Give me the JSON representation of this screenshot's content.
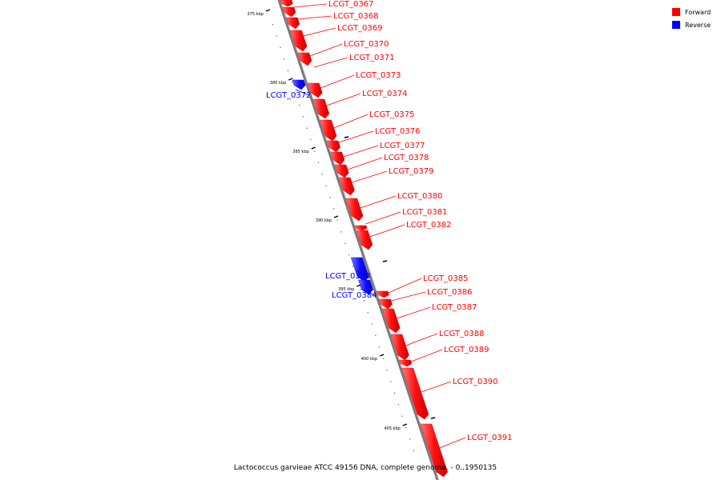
{
  "caption": "Lactococcus garvieae ATCC 49156 DNA, complete genome. - 0..1950135",
  "legend": [
    {
      "label": "Forward",
      "color": "#ff0000"
    },
    {
      "label": "Reverse",
      "color": "#0000ff"
    }
  ],
  "colors": {
    "forward": "#ff0000",
    "reverse": "#0000ff",
    "backbone": "#808080"
  },
  "ticks": [
    {
      "label": "375 kbp",
      "kbp": 375
    },
    {
      "label": "380 kbp",
      "kbp": 380
    },
    {
      "label": "385 kbp",
      "kbp": 385
    },
    {
      "label": "390 kbp",
      "kbp": 390
    },
    {
      "label": "395 kbp",
      "kbp": 395
    },
    {
      "label": "400 kbp",
      "kbp": 400
    },
    {
      "label": "405 kbp",
      "kbp": 405
    }
  ],
  "genes": [
    {
      "name": "LCGT_0367",
      "strand": "forward"
    },
    {
      "name": "LCGT_0368",
      "strand": "forward"
    },
    {
      "name": "LCGT_0369",
      "strand": "forward"
    },
    {
      "name": "LCGT_0370",
      "strand": "forward"
    },
    {
      "name": "LCGT_0371",
      "strand": "forward"
    },
    {
      "name": "LCGT_0372",
      "strand": "reverse"
    },
    {
      "name": "LCGT_0373",
      "strand": "forward"
    },
    {
      "name": "LCGT_0374",
      "strand": "forward"
    },
    {
      "name": "LCGT_0375",
      "strand": "forward"
    },
    {
      "name": "LCGT_0376",
      "strand": "forward"
    },
    {
      "name": "LCGT_0377",
      "strand": "forward"
    },
    {
      "name": "LCGT_0378",
      "strand": "forward"
    },
    {
      "name": "LCGT_0379",
      "strand": "forward"
    },
    {
      "name": "LCGT_0380",
      "strand": "forward"
    },
    {
      "name": "LCGT_0381",
      "strand": "forward"
    },
    {
      "name": "LCGT_0382",
      "strand": "forward"
    },
    {
      "name": "LCGT_0383",
      "strand": "reverse"
    },
    {
      "name": "LCGT_0384",
      "strand": "reverse"
    },
    {
      "name": "LCGT_0385",
      "strand": "forward"
    },
    {
      "name": "LCGT_0386",
      "strand": "forward"
    },
    {
      "name": "LCGT_0387",
      "strand": "forward"
    },
    {
      "name": "LCGT_0388",
      "strand": "forward"
    },
    {
      "name": "LCGT_0389",
      "strand": "forward"
    },
    {
      "name": "LCGT_0390",
      "strand": "forward"
    },
    {
      "name": "LCGT_0391",
      "strand": "forward"
    }
  ]
}
